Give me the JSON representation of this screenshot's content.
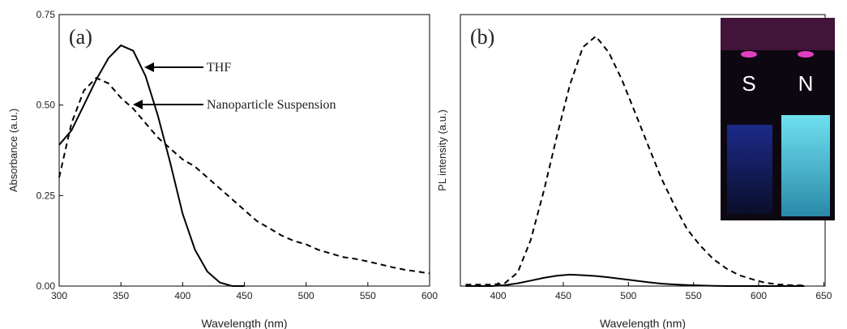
{
  "chart_data": [
    {
      "type": "line",
      "label": "(a)",
      "x_label": "Wavelength (nm)",
      "y_label": "Absorbance (a.u.)",
      "xlim": [
        300,
        600
      ],
      "ylim": [
        0,
        0.75
      ],
      "xticks": [
        300,
        350,
        400,
        450,
        500,
        550,
        600
      ],
      "yticks": [
        {
          "value": 0,
          "label": "0.00"
        },
        {
          "value": 0.25,
          "label": "0.25"
        },
        {
          "value": 0.5,
          "label": "0.50"
        },
        {
          "value": 0.75,
          "label": "0.75"
        }
      ],
      "x": [
        300,
        310,
        320,
        330,
        340,
        350,
        360,
        370,
        380,
        390,
        400,
        410,
        420,
        430,
        440,
        450,
        460,
        470,
        480,
        490,
        500,
        510,
        520,
        530,
        540,
        550,
        560,
        570,
        580,
        590,
        600
      ],
      "series": [
        {
          "name": "THF",
          "color": "#000000",
          "dash": false,
          "values": [
            0.39,
            0.43,
            0.5,
            0.57,
            0.63,
            0.665,
            0.65,
            0.58,
            0.47,
            0.34,
            0.2,
            0.1,
            0.04,
            0.01,
            0.0,
            0.0,
            null,
            null,
            null,
            null,
            null,
            null,
            null,
            null,
            null,
            null,
            null,
            null,
            null,
            null,
            null
          ]
        },
        {
          "name": "Nanoparticle Suspension",
          "color": "#000000",
          "dash": true,
          "values": [
            0.3,
            0.45,
            0.54,
            0.575,
            0.56,
            0.52,
            0.49,
            0.45,
            0.41,
            0.38,
            0.35,
            0.33,
            0.3,
            0.27,
            0.24,
            0.21,
            0.18,
            0.16,
            0.14,
            0.125,
            0.115,
            0.1,
            0.09,
            0.08,
            0.075,
            0.068,
            0.06,
            0.052,
            0.045,
            0.04,
            0.035
          ]
        }
      ]
    },
    {
      "type": "line",
      "label": "(b)",
      "x_label": "Wavelength (nm)",
      "y_label": "PL intensity (a.u.)",
      "xlim": [
        371,
        651
      ],
      "ylim": [
        0,
        1
      ],
      "xticks": [
        400,
        450,
        500,
        550,
        600,
        650
      ],
      "inset_labels": [
        "S",
        "N"
      ],
      "x": [
        375,
        385,
        395,
        405,
        415,
        425,
        435,
        445,
        455,
        465,
        475,
        485,
        495,
        505,
        515,
        525,
        535,
        545,
        555,
        565,
        575,
        585,
        595,
        605,
        615,
        625,
        635
      ],
      "series": [
        {
          "color": "#000000",
          "dash": true,
          "values": [
            0.005,
            0.005,
            0.005,
            0.01,
            0.05,
            0.17,
            0.35,
            0.55,
            0.74,
            0.88,
            0.92,
            0.86,
            0.76,
            0.64,
            0.52,
            0.4,
            0.3,
            0.21,
            0.15,
            0.1,
            0.065,
            0.04,
            0.025,
            0.012,
            0.006,
            0.003,
            0.002
          ]
        },
        {
          "color": "#000000",
          "dash": false,
          "values": [
            0,
            0,
            0,
            0.003,
            0.01,
            0.02,
            0.03,
            0.038,
            0.042,
            0.04,
            0.037,
            0.032,
            0.026,
            0.02,
            0.014,
            0.009,
            0.006,
            0.004,
            0.002,
            0.001,
            0,
            0,
            0,
            0,
            0,
            0,
            0
          ]
        }
      ]
    }
  ]
}
